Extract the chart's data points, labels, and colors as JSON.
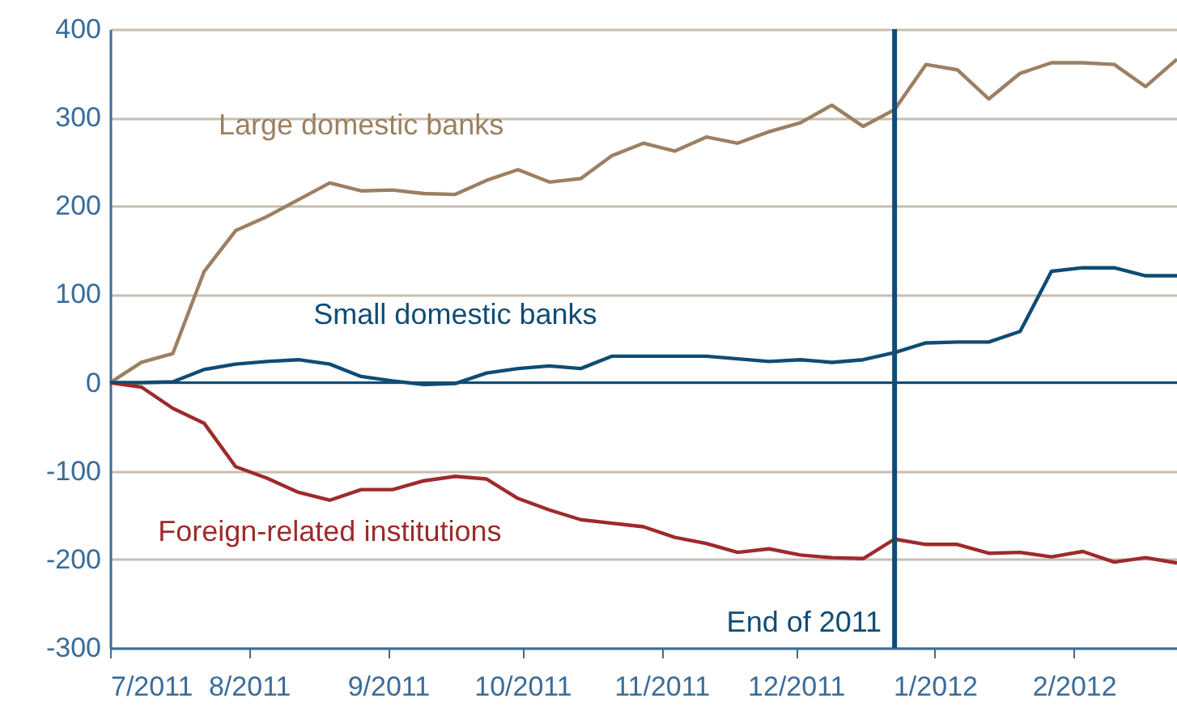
{
  "chart_data": {
    "type": "line",
    "x": [
      "2011-07-01",
      "2011-07-08",
      "2011-07-15",
      "2011-07-22",
      "2011-07-29",
      "2011-08-05",
      "2011-08-12",
      "2011-08-19",
      "2011-08-26",
      "2011-09-02",
      "2011-09-09",
      "2011-09-16",
      "2011-09-23",
      "2011-09-30",
      "2011-10-07",
      "2011-10-14",
      "2011-10-21",
      "2011-10-28",
      "2011-11-04",
      "2011-11-11",
      "2011-11-18",
      "2011-11-25",
      "2011-12-02",
      "2011-12-09",
      "2011-12-16",
      "2011-12-23",
      "2011-12-30",
      "2012-01-06",
      "2012-01-13",
      "2012-01-20",
      "2012-01-27",
      "2012-02-03",
      "2012-02-10",
      "2012-02-17",
      "2012-02-24"
    ],
    "series": [
      {
        "name": "Large domestic banks",
        "color": "#9c8062",
        "values": [
          0,
          23,
          33,
          126,
          172,
          188,
          207,
          226,
          217,
          218,
          214,
          213,
          229,
          241,
          227,
          231,
          257,
          271,
          262,
          278,
          271,
          284,
          294,
          314,
          290,
          309,
          360,
          354,
          321,
          350,
          362,
          362,
          360,
          335,
          366
        ]
      },
      {
        "name": "Small domestic banks",
        "color": "#0f4c75",
        "values": [
          0,
          0,
          1,
          15,
          21,
          24,
          26,
          21,
          7,
          2,
          -2,
          -1,
          11,
          16,
          19,
          16,
          30,
          30,
          30,
          30,
          27,
          24,
          26,
          23,
          26,
          34,
          45,
          46,
          46,
          58,
          126,
          130,
          130,
          121,
          121
        ]
      },
      {
        "name": "Foreign-related institutions",
        "color": "#9e2a2b",
        "values": [
          0,
          -5,
          -29,
          -46,
          -95,
          -108,
          -124,
          -133,
          -121,
          -121,
          -111,
          -106,
          -109,
          -131,
          -144,
          -155,
          -159,
          -163,
          -175,
          -182,
          -192,
          -188,
          -195,
          -198,
          -199,
          -177,
          -183,
          -183,
          -193,
          -192,
          -197,
          -191,
          -203,
          -198,
          -204
        ]
      }
    ],
    "xlim": [
      "2011-07-01",
      "2012-02-24"
    ],
    "xticks": [
      {
        "value": "2011-07",
        "label": "7/2011"
      },
      {
        "value": "2011-08",
        "label": "8/2011"
      },
      {
        "value": "2011-09",
        "label": "9/2011"
      },
      {
        "value": "2011-10",
        "label": "10/2011"
      },
      {
        "value": "2011-11",
        "label": "11/2011"
      },
      {
        "value": "2011-12",
        "label": "12/2011"
      },
      {
        "value": "2012-01",
        "label": "1/2012"
      },
      {
        "value": "2012-02",
        "label": "2/2012"
      }
    ],
    "ylim": [
      -300,
      400
    ],
    "yticks": [
      400,
      300,
      200,
      100,
      0,
      -100,
      -200,
      {
        "value": -300,
        "label": "-300"
      }
    ],
    "ref_lines": [
      {
        "axis": "x",
        "value": "2011-12-23",
        "label": "End of 2011",
        "color": "#0f4c75"
      },
      {
        "axis": "y",
        "value": 0,
        "label": null,
        "color": "#0f4c75"
      }
    ],
    "grid": "y",
    "legend": false,
    "marker": "none",
    "line_style": "solid"
  }
}
